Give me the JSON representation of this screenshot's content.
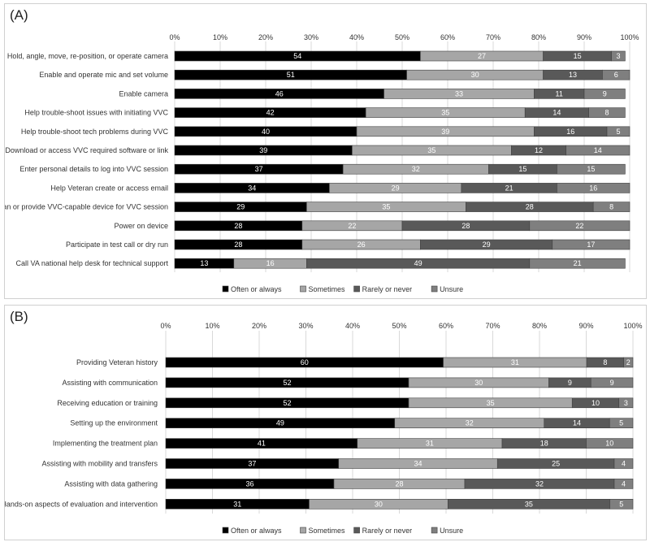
{
  "panels": [
    {
      "label": "(A)"
    },
    {
      "label": "(B)"
    }
  ],
  "colors": {
    "Often or always": "#000000",
    "Sometimes": "#a6a6a6",
    "Rarely or never": "#595959",
    "Unsure": "#7f7f7f",
    "grid": "#d9d9d9",
    "border": "#404040"
  },
  "chart_data": [
    {
      "type": "bar",
      "orientation": "horizontal",
      "stacked": true,
      "title": "",
      "xlim": [
        0,
        100
      ],
      "x_ticks": [
        "0%",
        "10%",
        "20%",
        "30%",
        "40%",
        "50%",
        "60%",
        "70%",
        "80%",
        "90%",
        "100%"
      ],
      "grid": true,
      "legend_position": "bottom",
      "categories": [
        "Hold, angle, move, re-position, or operate camera",
        "Enable and operate mic and set volume",
        "Enable camera",
        "Help trouble-shoot issues with initiating VVC",
        "Help trouble-shoot tech problems during VVC",
        "Download or access VVC required software or link",
        "Enter personal details to log into VVC session",
        "Help Veteran create or access email",
        "Loan or provide VVC-capable device for VVC session",
        "Power on device",
        "Participate in test call or dry run",
        "Call VA national help desk for technical support"
      ],
      "series": [
        {
          "name": "Often or always",
          "values": [
            54,
            51,
            46,
            42,
            40,
            39,
            37,
            34,
            29,
            28,
            28,
            13
          ]
        },
        {
          "name": "Sometimes",
          "values": [
            27,
            30,
            33,
            35,
            39,
            35,
            32,
            29,
            35,
            22,
            26,
            16
          ]
        },
        {
          "name": "Rarely or never",
          "values": [
            15,
            13,
            11,
            14,
            16,
            12,
            15,
            21,
            28,
            28,
            29,
            49
          ]
        },
        {
          "name": "Unsure",
          "values": [
            3,
            6,
            9,
            8,
            5,
            14,
            15,
            16,
            8,
            22,
            17,
            21
          ]
        }
      ]
    },
    {
      "type": "bar",
      "orientation": "horizontal",
      "stacked": true,
      "title": "",
      "xlim": [
        0,
        100
      ],
      "x_ticks": [
        "0%",
        "10%",
        "20%",
        "30%",
        "40%",
        "50%",
        "60%",
        "70%",
        "80%",
        "90%",
        "100%"
      ],
      "grid": true,
      "legend_position": "bottom",
      "categories": [
        "Providing Veteran history",
        "Assisting with communication",
        "Receiving education or training",
        "Setting up the environment",
        "Implementing the treatment plan",
        "Assisting with mobility and transfers",
        "Assisting with data gathering",
        "Hands-on aspects of evaluation and intervention"
      ],
      "series": [
        {
          "name": "Often or always",
          "values": [
            60,
            52,
            52,
            49,
            41,
            37,
            36,
            31
          ]
        },
        {
          "name": "Sometimes",
          "values": [
            31,
            30,
            35,
            32,
            31,
            34,
            28,
            30
          ]
        },
        {
          "name": "Rarely or never",
          "values": [
            8,
            9,
            10,
            14,
            18,
            25,
            32,
            35
          ]
        },
        {
          "name": "Unsure",
          "values": [
            2,
            9,
            3,
            5,
            10,
            4,
            4,
            5
          ]
        }
      ]
    }
  ]
}
